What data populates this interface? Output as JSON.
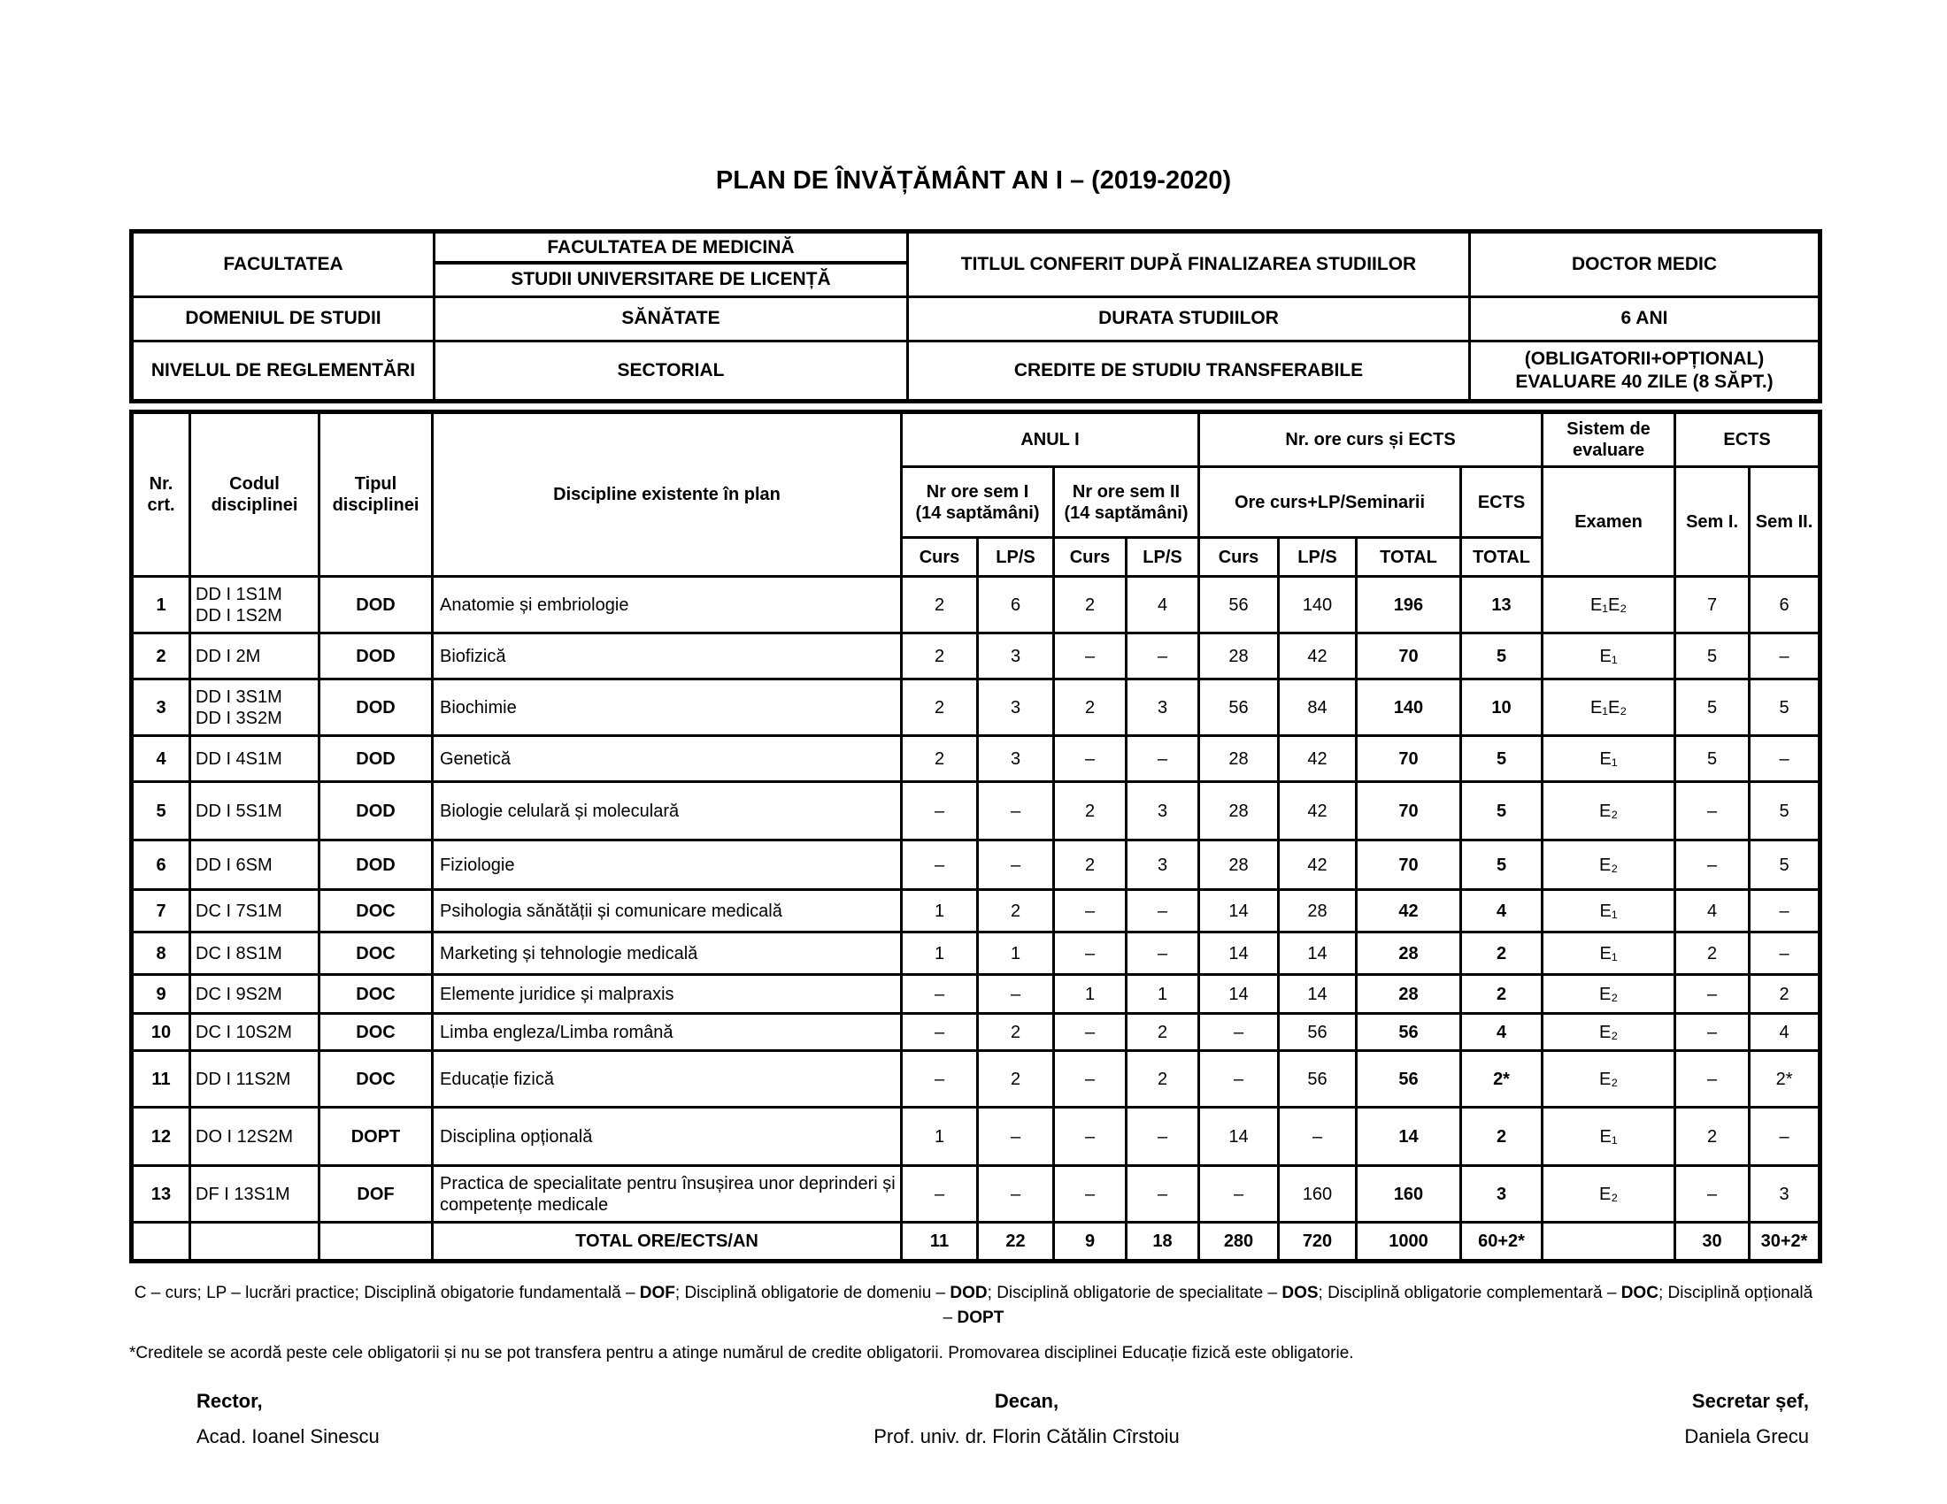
{
  "title": "PLAN DE ÎNVĂȚĂMÂNT AN I – (2019-2020)",
  "info": {
    "facultatea_label": "FACULTATEA",
    "facultatea_line1": "FACULTATEA DE MEDICINĂ",
    "facultatea_line2": "STUDII UNIVERSITARE DE LICENȚĂ",
    "titlul_label": "TITLUL CONFERIT DUPĂ FINALIZAREA STUDIILOR",
    "titlul_value": "DOCTOR MEDIC",
    "domeniul_label": "DOMENIUL DE STUDII",
    "domeniul_value": "SĂNĂTATE",
    "durata_label": "DURATA STUDIILOR",
    "durata_value": "6 ANI",
    "nivelul_label": "NIVELUL DE REGLEMENTĂRI",
    "nivelul_value": "SECTORIAL",
    "credite_label": "CREDITE DE STUDIU TRANSFERABILE",
    "credite_line1": "(OBLIGATORII+OPȚIONAL)",
    "credite_line2": "EVALUARE 40 ZILE (8 SĂPT.)"
  },
  "table": {
    "headers": {
      "nr1": "Nr.",
      "nr2": "crt.",
      "codul": "Codul disciplinei",
      "tipul": "Tipul disciplinei",
      "discipline": "Discipline existente în plan",
      "anul": "ANUL I",
      "nr_ore_ects": "Nr. ore curs și ECTS",
      "sistem": "Sistem de evaluare",
      "ects_group": "ECTS",
      "sem1_l1": "Nr ore sem I",
      "sem1_l2": "(14 saptămâni)",
      "sem2_l1": "Nr ore sem II",
      "sem2_l2": "(14 saptămâni)",
      "ore_group": "Ore curs+LP/Seminarii",
      "ects_mid": "ECTS",
      "examen": "Examen",
      "sem1": "Sem I.",
      "sem2": "Sem II.",
      "curs": "Curs",
      "lps": "LP/S",
      "total": "TOTAL"
    },
    "rows": [
      {
        "nr": "1",
        "cod": [
          "DD I 1S1M",
          "DD I 1S2M"
        ],
        "tip": "DOD",
        "disc": "Anatomie și embriologie",
        "s1_curs": "2",
        "s1_lps": "6",
        "s2_curs": "2",
        "s2_lps": "4",
        "oc_curs": "56",
        "oc_lps": "140",
        "oc_total": "196",
        "ects": "13",
        "examen": "E₁E₂",
        "ects_s1": "7",
        "ects_s2": "6"
      },
      {
        "nr": "2",
        "cod": "DD I 2M",
        "tip": "DOD",
        "disc": "Biofizică",
        "s1_curs": "2",
        "s1_lps": "3",
        "s2_curs": "–",
        "s2_lps": "–",
        "oc_curs": "28",
        "oc_lps": "42",
        "oc_total": "70",
        "ects": "5",
        "examen": "E₁",
        "ects_s1": "5",
        "ects_s2": "–"
      },
      {
        "nr": "3",
        "cod": [
          "DD I 3S1M",
          "DD I 3S2M"
        ],
        "tip": "DOD",
        "disc": "Biochimie",
        "s1_curs": "2",
        "s1_lps": "3",
        "s2_curs": "2",
        "s2_lps": "3",
        "oc_curs": "56",
        "oc_lps": "84",
        "oc_total": "140",
        "ects": "10",
        "examen": "E₁E₂",
        "ects_s1": "5",
        "ects_s2": "5"
      },
      {
        "nr": "4",
        "cod": "DD I 4S1M",
        "tip": "DOD",
        "disc": "Genetică",
        "s1_curs": "2",
        "s1_lps": "3",
        "s2_curs": "–",
        "s2_lps": "–",
        "oc_curs": "28",
        "oc_lps": "42",
        "oc_total": "70",
        "ects": "5",
        "examen": "E₁",
        "ects_s1": "5",
        "ects_s2": "–"
      },
      {
        "nr": "5",
        "cod": "DD I 5S1M",
        "tip": "DOD",
        "disc": "Biologie celulară și moleculară",
        "s1_curs": "–",
        "s1_lps": "–",
        "s2_curs": "2",
        "s2_lps": "3",
        "oc_curs": "28",
        "oc_lps": "42",
        "oc_total": "70",
        "ects": "5",
        "examen": "E₂",
        "ects_s1": "–",
        "ects_s2": "5"
      },
      {
        "nr": "6",
        "cod": "DD I 6SM",
        "tip": "DOD",
        "disc": "Fiziologie",
        "s1_curs": "–",
        "s1_lps": "–",
        "s2_curs": "2",
        "s2_lps": "3",
        "oc_curs": "28",
        "oc_lps": "42",
        "oc_total": "70",
        "ects": "5",
        "examen": "E₂",
        "ects_s1": "–",
        "ects_s2": "5"
      },
      {
        "nr": "7",
        "cod": "DC I 7S1M",
        "tip": "DOC",
        "disc": "Psihologia sănătății și comunicare medicală",
        "s1_curs": "1",
        "s1_lps": "2",
        "s2_curs": "–",
        "s2_lps": "–",
        "oc_curs": "14",
        "oc_lps": "28",
        "oc_total": "42",
        "ects": "4",
        "examen": "E₁",
        "ects_s1": "4",
        "ects_s2": "–"
      },
      {
        "nr": "8",
        "cod": "DC I 8S1M",
        "tip": "DOC",
        "disc": "Marketing și tehnologie medicală",
        "s1_curs": "1",
        "s1_lps": "1",
        "s2_curs": "–",
        "s2_lps": "–",
        "oc_curs": "14",
        "oc_lps": "14",
        "oc_total": "28",
        "ects": "2",
        "examen": "E₁",
        "ects_s1": "2",
        "ects_s2": "–"
      },
      {
        "nr": "9",
        "cod": "DC I 9S2M",
        "tip": "DOC",
        "disc": "Elemente juridice și malpraxis",
        "s1_curs": "–",
        "s1_lps": "–",
        "s2_curs": "1",
        "s2_lps": "1",
        "oc_curs": "14",
        "oc_lps": "14",
        "oc_total": "28",
        "ects": "2",
        "examen": "E₂",
        "ects_s1": "–",
        "ects_s2": "2"
      },
      {
        "nr": "10",
        "cod": "DC I 10S2M",
        "tip": "DOC",
        "disc": "Limba engleza/Limba română",
        "s1_curs": "–",
        "s1_lps": "2",
        "s2_curs": "–",
        "s2_lps": "2",
        "oc_curs": "–",
        "oc_lps": "56",
        "oc_total": "56",
        "ects": "4",
        "examen": "E₂",
        "ects_s1": "–",
        "ects_s2": "4"
      },
      {
        "nr": "11",
        "cod": "DD I 11S2M",
        "tip": "DOC",
        "disc": "Educație fizică",
        "s1_curs": "–",
        "s1_lps": "2",
        "s2_curs": "–",
        "s2_lps": "2",
        "oc_curs": "–",
        "oc_lps": "56",
        "oc_total": "56",
        "ects": "2*",
        "examen": "E₂",
        "ects_s1": "–",
        "ects_s2": "2*"
      },
      {
        "nr": "12",
        "cod": "DO I 12S2M",
        "tip": "DOPT",
        "disc": "Disciplina opțională",
        "s1_curs": "1",
        "s1_lps": "–",
        "s2_curs": "–",
        "s2_lps": "–",
        "oc_curs": "14",
        "oc_lps": "–",
        "oc_total": "14",
        "ects": "2",
        "examen": "E₁",
        "ects_s1": "2",
        "ects_s2": "–"
      },
      {
        "nr": "13",
        "cod": "DF I 13S1M",
        "tip": "DOF",
        "disc": "Practica de specialitate pentru însușirea unor deprinderi și competențe medicale",
        "s1_curs": "–",
        "s1_lps": "–",
        "s2_curs": "–",
        "s2_lps": "–",
        "oc_curs": "–",
        "oc_lps": "160",
        "oc_total": "160",
        "ects": "3",
        "examen": "E₂",
        "ects_s1": "–",
        "ects_s2": "3"
      }
    ],
    "total_row": {
      "label": "TOTAL ORE/ECTS/AN",
      "vals": [
        "11",
        "22",
        "9",
        "18",
        "280",
        "720",
        "1000",
        "60+2*",
        "",
        "30",
        "30+2*"
      ]
    }
  },
  "legend": {
    "seg1": "C – curs; LP – lucrări practice; Disciplină obigatorie fundamentală – ",
    "bold1": "DOF",
    "seg2": "; Disciplină obligatorie de domeniu – ",
    "bold2": "DOD",
    "seg3": "; Disciplină obligatorie de specialitate – ",
    "bold3": "DOS",
    "seg4": "; Disciplină obligatorie complementară – ",
    "bold4": "DOC",
    "seg5": "; Disciplină opțională",
    "line2_pre": "– ",
    "line2_bold": "DOPT"
  },
  "footnote": "*Creditele se acordă peste cele obligatorii și nu se pot transfera pentru a atinge numărul de credite obligatorii. Promovarea disciplinei Educație fizică este obligatorie.",
  "signatures": {
    "left_title": "Rector,",
    "left_name": "Acad. Ioanel Sinescu",
    "center_title": "Decan,",
    "center_name": "Prof. univ. dr. Florin Cătălin Cîrstoiu",
    "right_title": "Secretar șef,",
    "right_name": "Daniela Grecu"
  }
}
